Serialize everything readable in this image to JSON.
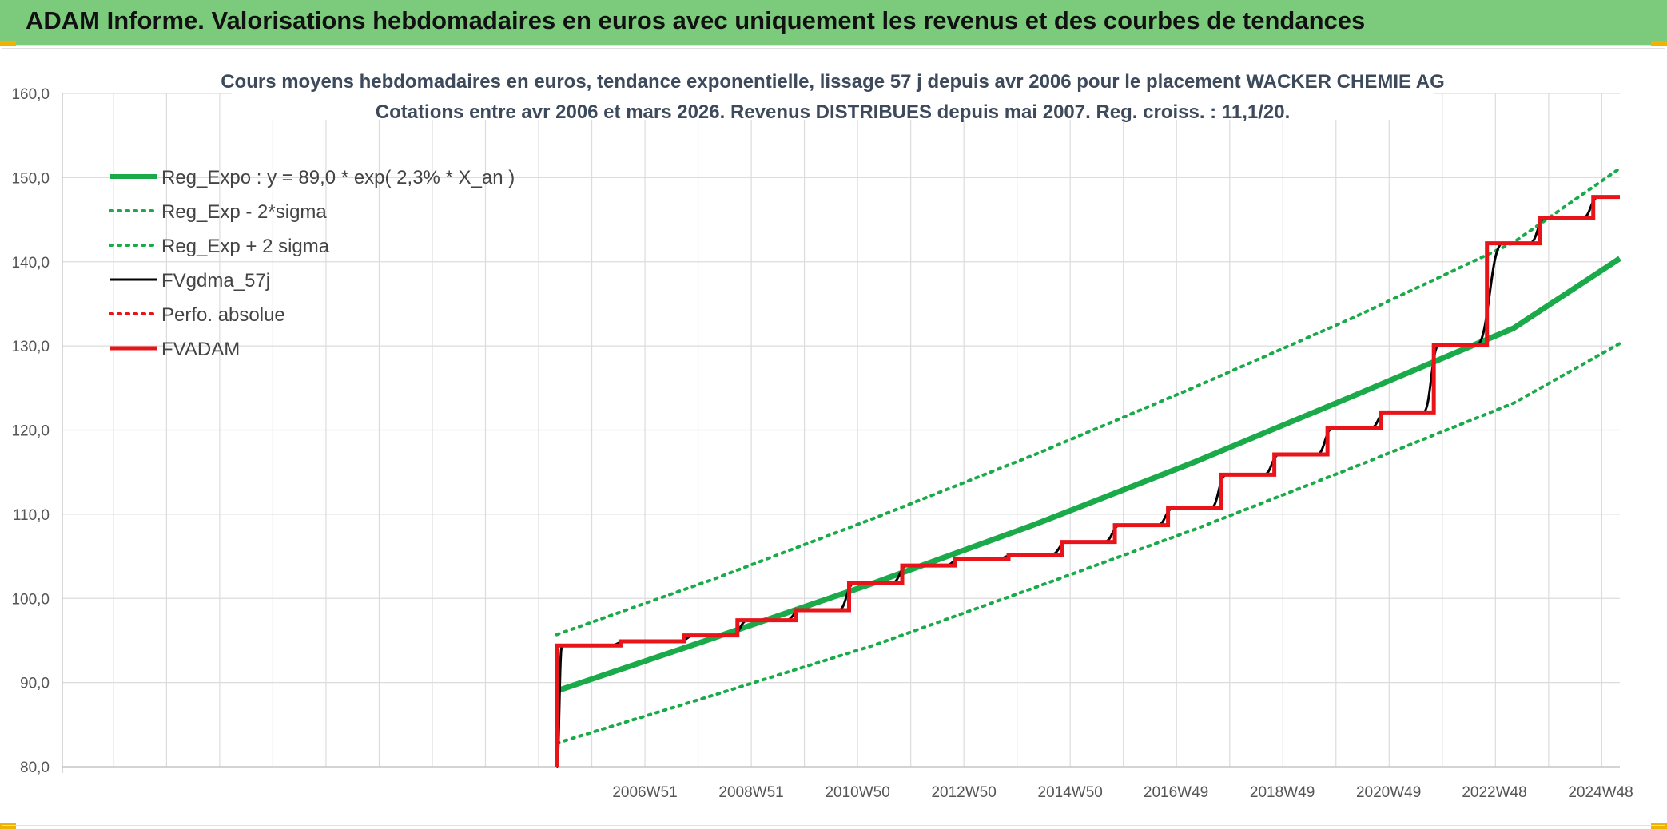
{
  "banner": {
    "title": "ADAM Informe. Valorisations hebdomadaires en euros avec uniquement les revenus et des courbes de tendances"
  },
  "colors": {
    "banner_bg": "#7ccb7c",
    "accent_corners": "#f0b400",
    "trend": "#1aaa4a",
    "fvgdma": "#000000",
    "fvadam": "#e8141a",
    "perfo": "#e8141a",
    "grid": "#dcdcdc"
  },
  "chart_data": {
    "type": "line",
    "title": [
      "Cours moyens hebdomadaires en euros, tendance exponentielle, lissage 57 j depuis avr 2006 pour le placement WACKER CHEMIE AG",
      "Cotations entre avr 2006 et mars 2026. Revenus DISTRIBUES depuis mai 2007. Reg. croiss. : 11,1/20."
    ],
    "xlabel": "",
    "ylabel": "",
    "ylim": [
      80,
      160
    ],
    "yticks": [
      "80,0",
      "90,0",
      "100,0",
      "110,0",
      "120,0",
      "130,0",
      "140,0",
      "150,0",
      "160,0"
    ],
    "xlim": [
      1996.0,
      2025.3
    ],
    "xticks": [
      {
        "label": "2006W51",
        "x": 2006.96
      },
      {
        "label": "2008W51",
        "x": 2008.96
      },
      {
        "label": "2010W50",
        "x": 2010.96
      },
      {
        "label": "2012W50",
        "x": 2012.96
      },
      {
        "label": "2014W50",
        "x": 2014.96
      },
      {
        "label": "2016W49",
        "x": 2016.95
      },
      {
        "label": "2018W49",
        "x": 2018.95
      },
      {
        "label": "2020W49",
        "x": 2020.95
      },
      {
        "label": "2022W48",
        "x": 2022.94
      },
      {
        "label": "2024W48",
        "x": 2024.94
      }
    ],
    "grid": true,
    "legend_position": "top-left",
    "legend": [
      "Reg_Expo : y = 89,0 * exp( 2,3% *  X_an )",
      "Reg_Exp - 2*sigma",
      "Reg_Exp + 2 sigma",
      "FVgdma_57j",
      "Perfo. absolue",
      "FVADAM"
    ],
    "series": [
      {
        "name": "Reg_Expo : y = 89,0 * exp( 2,3% *  X_an )",
        "style": "solid-thick",
        "color": "#1aaa4a",
        "points": [
          [
            2005.3,
            89.0
          ],
          [
            2008.3,
            95.4
          ],
          [
            2011.3,
            101.9
          ],
          [
            2014.3,
            108.8
          ],
          [
            2017.3,
            116.2
          ],
          [
            2020.3,
            124.1
          ],
          [
            2023.3,
            132.1
          ],
          [
            2025.3,
            140.4
          ]
        ]
      },
      {
        "name": "Reg_Exp - 2*sigma",
        "style": "dotted",
        "color": "#1aaa4a",
        "points": [
          [
            2005.3,
            82.8
          ],
          [
            2008.3,
            88.6
          ],
          [
            2011.3,
            94.5
          ],
          [
            2014.3,
            101.3
          ],
          [
            2017.3,
            108.2
          ],
          [
            2020.3,
            115.6
          ],
          [
            2023.3,
            123.2
          ],
          [
            2025.3,
            130.3
          ]
        ]
      },
      {
        "name": "Reg_Exp + 2 sigma",
        "style": "dotted",
        "color": "#1aaa4a",
        "points": [
          [
            2005.3,
            95.7
          ],
          [
            2008.3,
            102.4
          ],
          [
            2011.3,
            109.6
          ],
          [
            2014.3,
            117.1
          ],
          [
            2017.3,
            125.1
          ],
          [
            2020.3,
            133.4
          ],
          [
            2023.3,
            142.3
          ],
          [
            2025.3,
            151.1
          ]
        ]
      },
      {
        "name": "FVgdma_57j",
        "style": "solid-smooth",
        "color": "#000000",
        "points": [
          [
            2005.3,
            80.0
          ],
          [
            2005.4,
            94.4
          ],
          [
            2006.3,
            94.4
          ],
          [
            2006.6,
            94.9
          ],
          [
            2007.6,
            94.9
          ],
          [
            2007.9,
            95.6
          ],
          [
            2008.6,
            95.6
          ],
          [
            2008.9,
            97.4
          ],
          [
            2009.6,
            97.4
          ],
          [
            2009.9,
            98.6
          ],
          [
            2010.6,
            98.6
          ],
          [
            2010.9,
            101.8
          ],
          [
            2011.6,
            101.8
          ],
          [
            2011.9,
            103.9
          ],
          [
            2012.6,
            103.9
          ],
          [
            2012.9,
            104.7
          ],
          [
            2013.6,
            104.7
          ],
          [
            2013.9,
            105.2
          ],
          [
            2014.6,
            105.2
          ],
          [
            2014.9,
            106.7
          ],
          [
            2015.6,
            106.7
          ],
          [
            2015.9,
            108.7
          ],
          [
            2016.6,
            108.7
          ],
          [
            2016.9,
            110.7
          ],
          [
            2017.6,
            110.7
          ],
          [
            2017.9,
            114.7
          ],
          [
            2018.6,
            114.7
          ],
          [
            2018.9,
            117.1
          ],
          [
            2019.6,
            117.1
          ],
          [
            2019.9,
            120.2
          ],
          [
            2020.6,
            120.2
          ],
          [
            2020.9,
            122.1
          ],
          [
            2021.6,
            122.1
          ],
          [
            2021.9,
            130.1
          ],
          [
            2022.6,
            130.1
          ],
          [
            2023.1,
            142.2
          ],
          [
            2023.6,
            142.2
          ],
          [
            2023.9,
            145.2
          ],
          [
            2024.6,
            145.2
          ],
          [
            2024.9,
            147.7
          ],
          [
            2025.3,
            147.7
          ]
        ]
      },
      {
        "name": "Perfo. absolue",
        "style": "dotted",
        "color": "#e8141a",
        "points": []
      },
      {
        "name": "FVADAM",
        "style": "step-thick",
        "color": "#e8141a",
        "points": [
          [
            2005.3,
            80.0
          ],
          [
            2005.3,
            94.4
          ],
          [
            2006.5,
            94.4
          ],
          [
            2006.5,
            94.9
          ],
          [
            2007.7,
            94.9
          ],
          [
            2007.7,
            95.6
          ],
          [
            2008.7,
            95.6
          ],
          [
            2008.7,
            97.4
          ],
          [
            2009.8,
            97.4
          ],
          [
            2009.8,
            98.6
          ],
          [
            2010.8,
            98.6
          ],
          [
            2010.8,
            101.8
          ],
          [
            2011.8,
            101.8
          ],
          [
            2011.8,
            103.9
          ],
          [
            2012.8,
            103.9
          ],
          [
            2012.8,
            104.7
          ],
          [
            2013.8,
            104.7
          ],
          [
            2013.8,
            105.2
          ],
          [
            2014.8,
            105.2
          ],
          [
            2014.8,
            106.7
          ],
          [
            2015.8,
            106.7
          ],
          [
            2015.8,
            108.7
          ],
          [
            2016.8,
            108.7
          ],
          [
            2016.8,
            110.7
          ],
          [
            2017.8,
            110.7
          ],
          [
            2017.8,
            114.7
          ],
          [
            2018.8,
            114.7
          ],
          [
            2018.8,
            117.1
          ],
          [
            2019.8,
            117.1
          ],
          [
            2019.8,
            120.2
          ],
          [
            2020.8,
            120.2
          ],
          [
            2020.8,
            122.1
          ],
          [
            2021.8,
            122.1
          ],
          [
            2021.8,
            130.1
          ],
          [
            2022.8,
            130.1
          ],
          [
            2022.8,
            142.2
          ],
          [
            2023.8,
            142.2
          ],
          [
            2023.8,
            145.2
          ],
          [
            2024.8,
            145.2
          ],
          [
            2024.8,
            147.7
          ],
          [
            2025.3,
            147.7
          ]
        ]
      }
    ]
  }
}
